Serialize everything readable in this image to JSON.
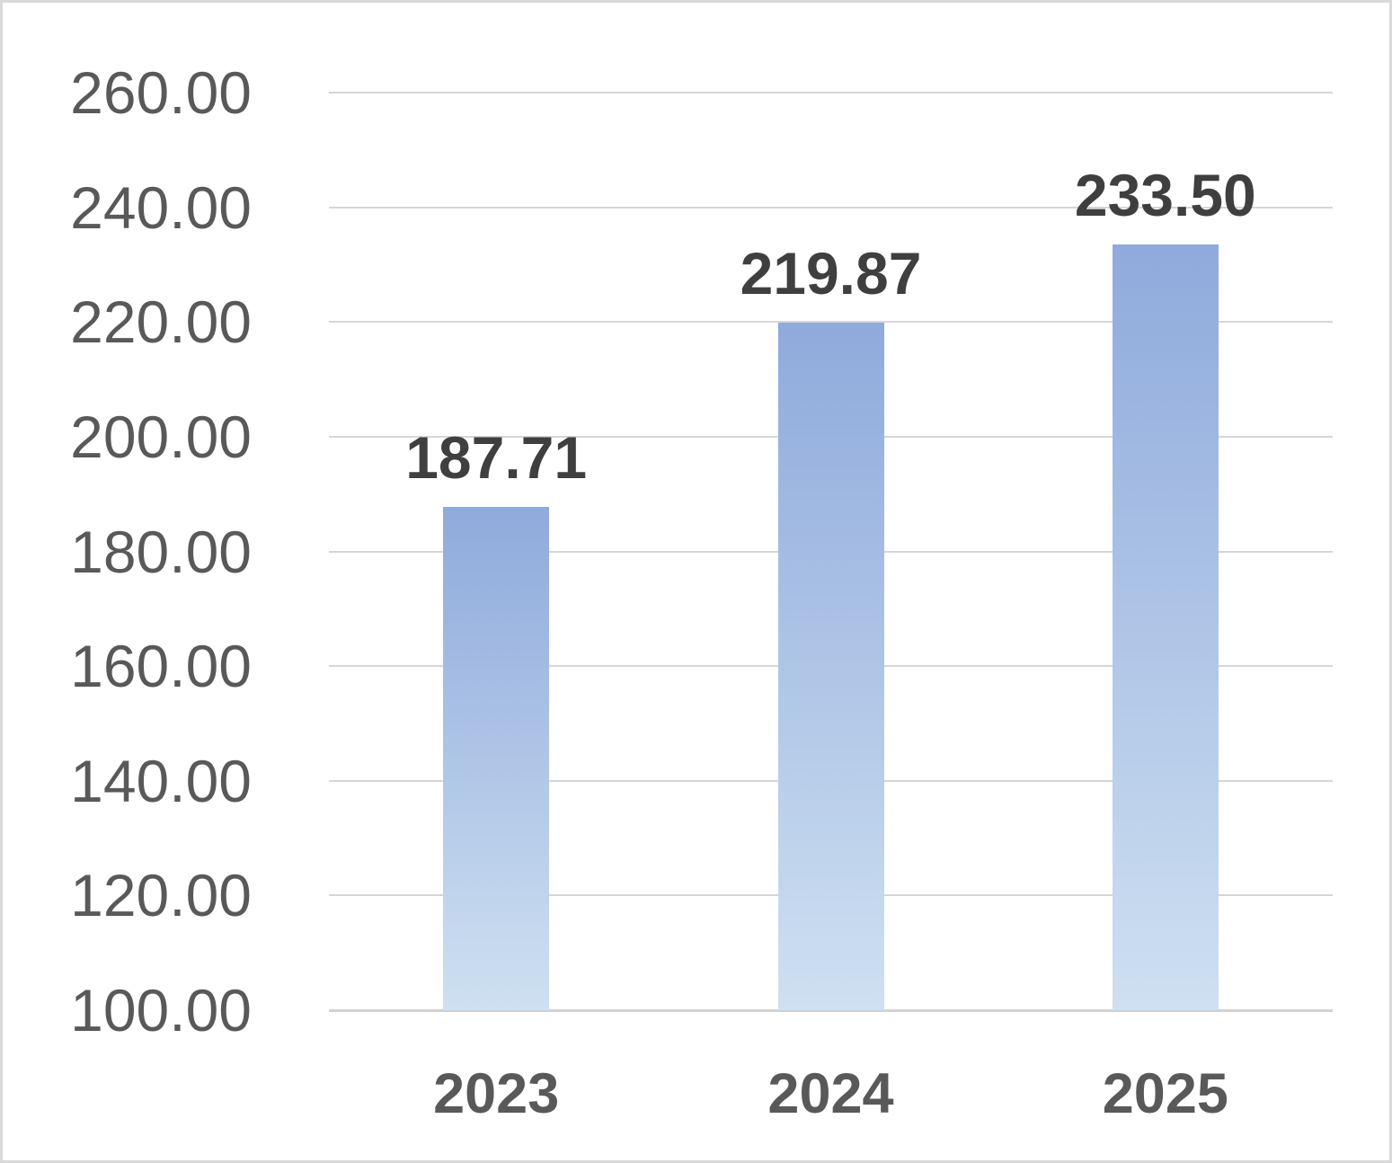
{
  "chart_data": {
    "type": "bar",
    "title": "",
    "categories": [
      "2023",
      "2024",
      "2025"
    ],
    "values": [
      187.71,
      219.87,
      233.5
    ],
    "data_labels": [
      "187.71",
      "219.87",
      "233.50"
    ],
    "ytick_values": [
      260,
      240,
      220,
      200,
      180,
      160,
      140,
      120,
      100
    ],
    "ytick_labels": [
      "260.00",
      "240.00",
      "220.00",
      "200.00",
      "180.00",
      "160.00",
      "140.00",
      "120.00",
      "100.00"
    ],
    "ylim": [
      100,
      260
    ],
    "grid": true,
    "legend": false,
    "xlabel": "",
    "ylabel": ""
  },
  "style": {
    "bar_gradient_top": "#8FAADC",
    "bar_gradient_bottom": "#CEE0F1",
    "gridline_color": "#d6d6d6",
    "axis_line_color": "#d2d2d2",
    "tick_label_color": "#595959",
    "category_label_color": "#595959",
    "data_label_color": "#3f3f3f",
    "border_color": "#d9d9d9",
    "background": "#ffffff"
  }
}
